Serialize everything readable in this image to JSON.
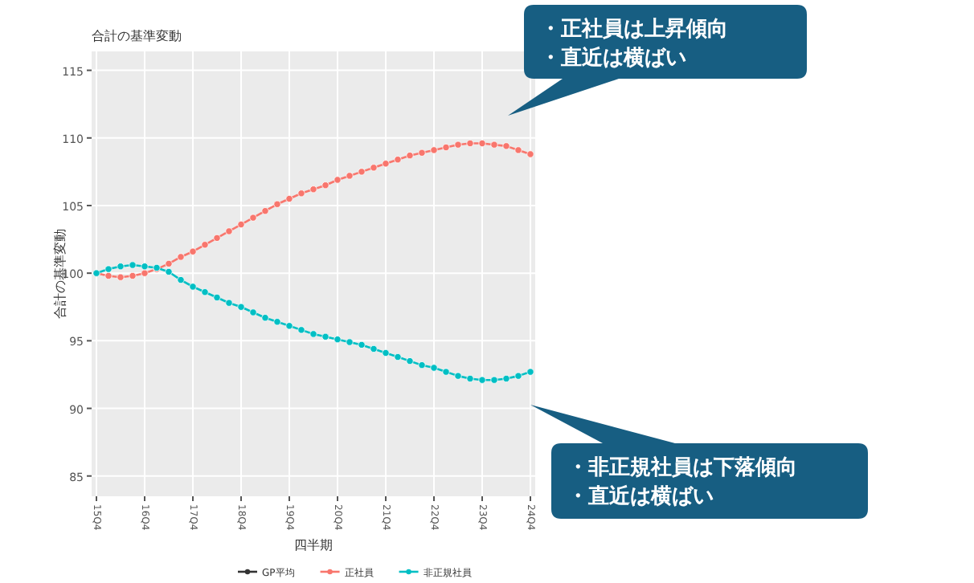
{
  "chart_data": {
    "type": "line",
    "title": "合計の基準変動",
    "xlabel": "四半期",
    "ylabel": "合計の基準変動",
    "categories": [
      "15Q4",
      null,
      null,
      null,
      "16Q4",
      null,
      null,
      null,
      "17Q4",
      null,
      null,
      null,
      "18Q4",
      null,
      null,
      null,
      "19Q4",
      null,
      null,
      null,
      "20Q4",
      null,
      null,
      null,
      "21Q4",
      null,
      null,
      null,
      "22Q4",
      null,
      null,
      null,
      "23Q4",
      null,
      null,
      null,
      "24Q4"
    ],
    "series": [
      {
        "name": "GP平均",
        "color": "#333333",
        "values": [
          null,
          null,
          null,
          null,
          null,
          null,
          null,
          null,
          null,
          null,
          null,
          null,
          null,
          null,
          null,
          null,
          null,
          null,
          null,
          null,
          null,
          null,
          null,
          null,
          null,
          null,
          null,
          null,
          null,
          null,
          null,
          null,
          null,
          null,
          null,
          null,
          null
        ]
      },
      {
        "name": "正社員",
        "color": "#f8766d",
        "values": [
          100,
          99.8,
          99.7,
          99.8,
          100.0,
          100.3,
          100.7,
          101.2,
          101.6,
          102.1,
          102.6,
          103.1,
          103.6,
          104.1,
          104.6,
          105.1,
          105.5,
          105.9,
          106.2,
          106.5,
          106.9,
          107.2,
          107.5,
          107.8,
          108.1,
          108.4,
          108.7,
          108.9,
          109.1,
          109.3,
          109.5,
          109.6,
          109.6,
          109.5,
          109.4,
          109.1,
          108.8
        ]
      },
      {
        "name": "非正規社員",
        "color": "#00bfc4",
        "values": [
          100,
          100.3,
          100.5,
          100.6,
          100.5,
          100.4,
          100.1,
          99.5,
          99.0,
          98.6,
          98.2,
          97.8,
          97.5,
          97.1,
          96.7,
          96.4,
          96.1,
          95.8,
          95.5,
          95.3,
          95.1,
          94.9,
          94.7,
          94.4,
          94.1,
          93.8,
          93.5,
          93.2,
          93.0,
          92.7,
          92.4,
          92.2,
          92.1,
          92.1,
          92.2,
          92.4,
          92.7
        ]
      }
    ],
    "ylim": [
      83.5,
      116.4
    ],
    "yticks": [
      85,
      90,
      95,
      100,
      105,
      110,
      115
    ],
    "grid": true,
    "legend": "bottom",
    "marker": "circle",
    "line_style": "solid",
    "annotations": [
      "・正社員は上昇傾向",
      "・直近は横ばい",
      "・非正規社員は下落傾向",
      "・直近は横ばい"
    ]
  }
}
